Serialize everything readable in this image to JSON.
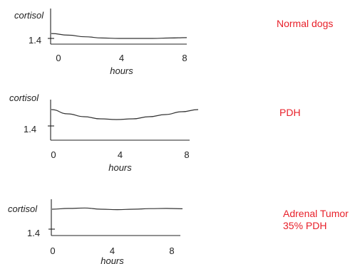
{
  "chart_data": [
    {
      "type": "line",
      "ylabel": "cortisol",
      "xlabel": "hours",
      "x_ticks": [
        "0",
        "4",
        "8"
      ],
      "y_ticks": [
        "1.4"
      ],
      "xlim": [
        0,
        8
      ],
      "ylim": [
        1.4,
        1.75
      ],
      "caption": [
        "Normal dogs"
      ],
      "series": [
        {
          "x": [
            0,
            1,
            2,
            3,
            4,
            5,
            6,
            7,
            8
          ],
          "y": [
            1.46,
            1.44,
            1.42,
            1.405,
            1.4,
            1.4,
            1.4,
            1.405,
            1.41
          ]
        }
      ]
    },
    {
      "type": "line",
      "ylabel": "cortisol",
      "xlabel": "hours",
      "x_ticks": [
        "0",
        "4",
        "8"
      ],
      "y_ticks": [
        "1.4"
      ],
      "xlim": [
        0,
        8
      ],
      "ylim": [
        1.4,
        1.75
      ],
      "caption": [
        "PDH"
      ],
      "series": [
        {
          "x": [
            0,
            1,
            2,
            3,
            4,
            5,
            6,
            7,
            8,
            9
          ],
          "y": [
            1.63,
            1.57,
            1.53,
            1.5,
            1.49,
            1.5,
            1.53,
            1.56,
            1.6,
            1.63
          ]
        }
      ]
    },
    {
      "type": "line",
      "ylabel": "cortisol",
      "xlabel": "hours",
      "x_ticks": [
        "0",
        "4",
        "8"
      ],
      "y_ticks": [
        "1.4"
      ],
      "xlim": [
        0,
        8
      ],
      "ylim": [
        1.4,
        1.75
      ],
      "caption": [
        "Adrenal Tumor",
        "35% PDH"
      ],
      "series": [
        {
          "x": [
            0,
            1,
            2,
            3,
            4,
            5,
            6,
            7,
            8
          ],
          "y": [
            1.645,
            1.655,
            1.66,
            1.645,
            1.64,
            1.645,
            1.652,
            1.655,
            1.65
          ]
        }
      ]
    }
  ]
}
